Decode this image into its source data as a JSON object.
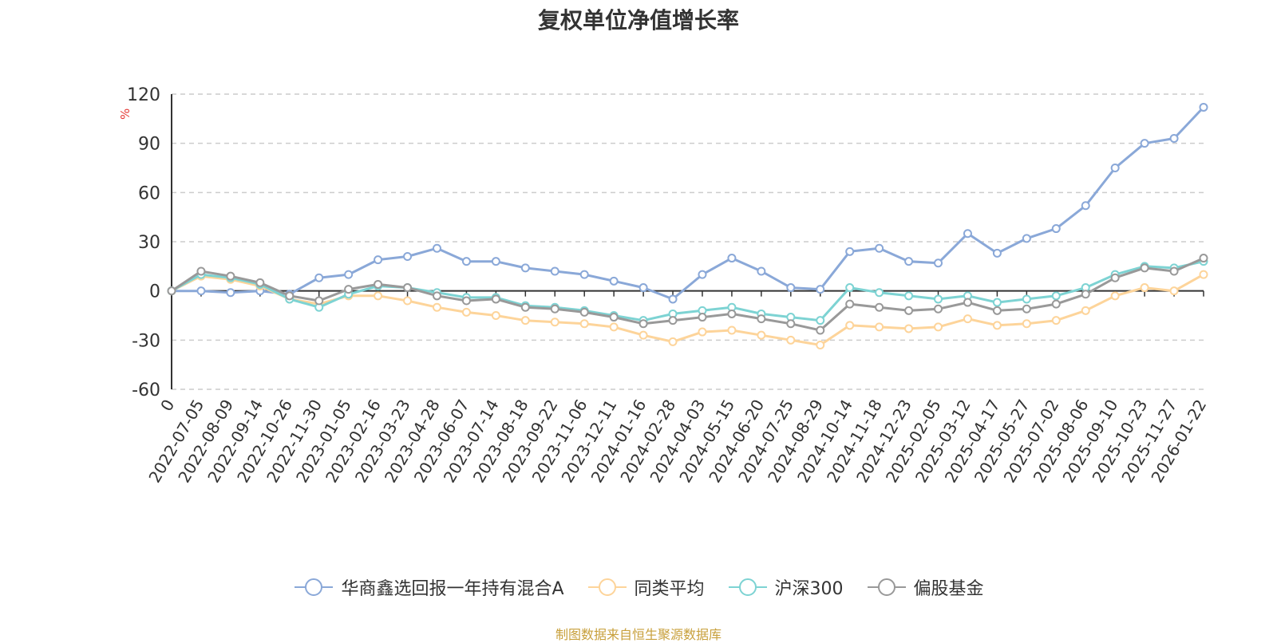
{
  "chart_data": {
    "type": "line",
    "title": "复权单位净值增长率",
    "unit": "%",
    "ylim": [
      -60,
      120
    ],
    "yticks": [
      "120",
      "90",
      "60",
      "30",
      "0",
      "-30",
      "-60"
    ],
    "x": [
      "0",
      "2022-07-05",
      "2022-08-09",
      "2022-09-14",
      "2022-10-26",
      "2022-11-30",
      "2023-01-05",
      "2023-02-16",
      "2023-03-23",
      "2023-04-28",
      "2023-06-07",
      "2023-07-14",
      "2023-08-18",
      "2023-09-22",
      "2023-11-06",
      "2023-12-11",
      "2024-01-16",
      "2024-02-28",
      "2024-04-03",
      "2024-05-15",
      "2024-06-20",
      "2024-07-25",
      "2024-08-29",
      "2024-10-14",
      "2024-11-18",
      "2024-12-23",
      "2025-02-05",
      "2025-03-12",
      "2025-04-17",
      "2025-05-27",
      "2025-07-02",
      "2025-08-06",
      "2025-09-10",
      "2025-10-23",
      "2025-11-27",
      "2026-01-22"
    ],
    "grid": true,
    "legend_position": "bottom",
    "series": [
      {
        "name": "华商鑫选回报一年持有混合A",
        "color": "#8aa8d8",
        "values": [
          0,
          0,
          -1,
          0,
          -2,
          8,
          10,
          19,
          21,
          26,
          18,
          18,
          14,
          12,
          10,
          6,
          2,
          -5,
          10,
          20,
          12,
          2,
          1,
          24,
          26,
          18,
          17,
          35,
          23,
          32,
          38,
          52,
          75,
          90,
          93,
          112
        ]
      },
      {
        "name": "同类平均",
        "color": "#fdd49a",
        "values": [
          0,
          9,
          7,
          3,
          -5,
          -8,
          -3,
          -3,
          -6,
          -10,
          -13,
          -15,
          -18,
          -19,
          -20,
          -22,
          -27,
          -31,
          -25,
          -24,
          -27,
          -30,
          -33,
          -21,
          -22,
          -23,
          -22,
          -17,
          -21,
          -20,
          -18,
          -12,
          -3,
          2,
          0,
          10
        ]
      },
      {
        "name": "沪深300",
        "color": "#7dd3d3",
        "values": [
          0,
          10,
          8,
          4,
          -5,
          -10,
          -2,
          3,
          2,
          -1,
          -4,
          -4,
          -9,
          -10,
          -12,
          -15,
          -18,
          -14,
          -12,
          -10,
          -14,
          -16,
          -18,
          2,
          -1,
          -3,
          -5,
          -3,
          -7,
          -5,
          -3,
          2,
          10,
          15,
          14,
          18
        ]
      },
      {
        "name": "偏股基金",
        "color": "#999999",
        "values": [
          0,
          12,
          9,
          5,
          -3,
          -6,
          1,
          4,
          2,
          -3,
          -6,
          -5,
          -10,
          -11,
          -13,
          -16,
          -20,
          -18,
          -16,
          -14,
          -17,
          -20,
          -24,
          -8,
          -10,
          -12,
          -11,
          -7,
          -12,
          -11,
          -8,
          -2,
          8,
          14,
          12,
          20
        ]
      }
    ]
  },
  "source_note": "制图数据来自恒生聚源数据库"
}
